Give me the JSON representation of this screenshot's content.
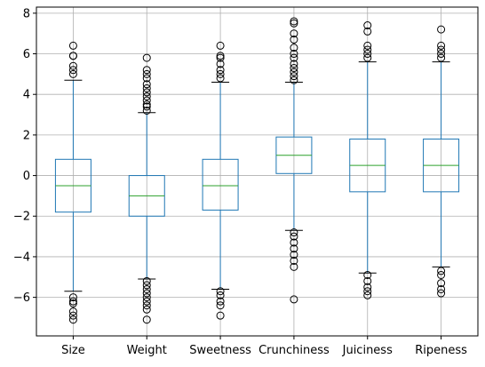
{
  "chart_data": {
    "type": "box",
    "title": "",
    "xlabel": "",
    "ylabel": "",
    "ylim": [
      -7.9,
      8.3
    ],
    "grid": true,
    "yticks": [
      -6,
      -4,
      -2,
      0,
      2,
      4,
      6,
      8
    ],
    "ytick_labels": [
      "−6",
      "−4",
      "−2",
      "0",
      "2",
      "4",
      "6",
      "8"
    ],
    "colors": {
      "box": "#1f77b4",
      "median": "#2ca02c",
      "grid": "#b0b0b0",
      "outlier": "#000000"
    },
    "categories": [
      "Size",
      "Weight",
      "Sweetness",
      "Crunchiness",
      "Juiciness",
      "Ripeness"
    ],
    "boxes": [
      {
        "label": "Size",
        "whislo": -5.7,
        "q1": -1.8,
        "med": -0.5,
        "q3": 0.8,
        "whishi": 4.7,
        "fliers": [
          5.0,
          5.2,
          5.4,
          5.9,
          5.9,
          6.4,
          -6.0,
          -6.2,
          -6.3,
          -6.7,
          -6.9,
          -7.1
        ]
      },
      {
        "label": "Weight",
        "whislo": -5.1,
        "q1": -2.0,
        "med": -1.0,
        "q3": 0.0,
        "whishi": 3.1,
        "fliers": [
          3.2,
          3.4,
          3.5,
          3.7,
          3.9,
          4.1,
          4.3,
          4.5,
          4.8,
          5.0,
          5.2,
          5.8,
          -5.2,
          -5.4,
          -5.6,
          -5.8,
          -6.0,
          -6.2,
          -6.4,
          -6.6,
          -7.1
        ]
      },
      {
        "label": "Sweetness",
        "whislo": -5.6,
        "q1": -1.7,
        "med": -0.5,
        "q3": 0.8,
        "whishi": 4.6,
        "fliers": [
          4.8,
          5.0,
          5.2,
          5.5,
          5.8,
          5.9,
          6.4,
          -5.7,
          -5.9,
          -6.2,
          -6.4,
          -6.9
        ]
      },
      {
        "label": "Crunchiness",
        "whislo": -2.7,
        "q1": 0.1,
        "med": 1.0,
        "q3": 1.9,
        "whishi": 4.6,
        "fliers": [
          4.7,
          4.9,
          5.1,
          5.3,
          5.5,
          5.8,
          6.0,
          6.3,
          6.7,
          7.0,
          7.5,
          7.6,
          -2.8,
          -3.0,
          -3.3,
          -3.6,
          -3.9,
          -4.2,
          -4.5,
          -6.1
        ]
      },
      {
        "label": "Juiciness",
        "whislo": -4.8,
        "q1": -0.8,
        "med": 0.5,
        "q3": 1.8,
        "whishi": 5.6,
        "fliers": [
          5.8,
          6.0,
          6.2,
          6.4,
          7.1,
          7.4,
          -4.9,
          -5.2,
          -5.5,
          -5.7,
          -5.9
        ]
      },
      {
        "label": "Ripeness",
        "whislo": -4.5,
        "q1": -0.8,
        "med": 0.5,
        "q3": 1.8,
        "whishi": 5.6,
        "fliers": [
          5.8,
          6.0,
          6.2,
          6.4,
          7.2,
          -4.7,
          -4.9,
          -5.3,
          -5.6,
          -5.8
        ]
      }
    ]
  }
}
